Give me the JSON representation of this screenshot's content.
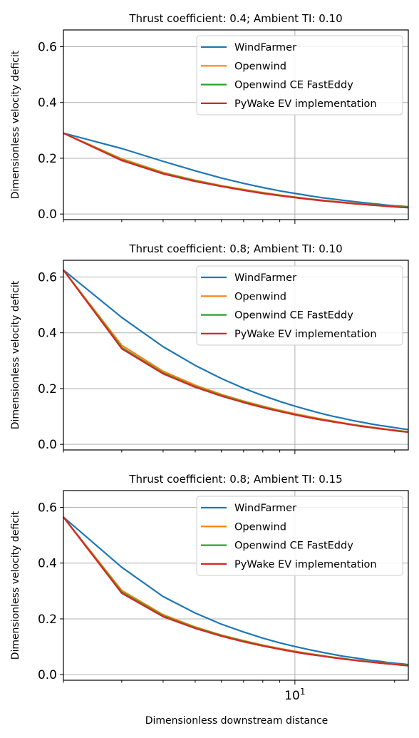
{
  "chart_data": [
    {
      "type": "line",
      "title": "Thrust coefficient: 0.4; Ambient TI: 0.10",
      "ylabel": "Dimensionless velocity deficit",
      "xlabel": "",
      "xscale": "log",
      "xlim": [
        2,
        22
      ],
      "ylim": [
        -0.02,
        0.66
      ],
      "yticks": [
        0.0,
        0.2,
        0.4,
        0.6
      ],
      "ytick_labels": [
        "0.0",
        "0.2",
        "0.4",
        "0.6"
      ],
      "xticks": [
        10
      ],
      "xtick_labels": [
        ""
      ],
      "grid": true,
      "legend_position": "top-right",
      "x": [
        2,
        3,
        4,
        5,
        6,
        7,
        8,
        9,
        10,
        11,
        12,
        13,
        14,
        15,
        16,
        17,
        18,
        19,
        20,
        21,
        22
      ],
      "series": [
        {
          "name": "WindFarmer",
          "color": "#1f77b4",
          "values": [
            0.29,
            0.235,
            0.189,
            0.155,
            0.129,
            0.11,
            0.095,
            0.083,
            0.074,
            0.066,
            0.059,
            0.054,
            0.049,
            0.045,
            0.041,
            0.038,
            0.035,
            0.032,
            0.03,
            0.028,
            0.026
          ]
        },
        {
          "name": "Openwind",
          "color": "#ff7f0e",
          "values": [
            0.29,
            0.198,
            0.149,
            0.121,
            0.102,
            0.088,
            0.077,
            0.068,
            0.061,
            0.055,
            0.05,
            0.046,
            0.042,
            0.039,
            0.036,
            0.033,
            0.031,
            0.029,
            0.027,
            0.025,
            0.024
          ]
        },
        {
          "name": "Openwind CE FastEddy",
          "color": "#2ca02c",
          "values": [
            0.29,
            0.194,
            0.146,
            0.119,
            0.1,
            0.086,
            0.075,
            0.067,
            0.06,
            0.054,
            0.049,
            0.045,
            0.041,
            0.038,
            0.035,
            0.033,
            0.03,
            0.028,
            0.026,
            0.025,
            0.023
          ]
        },
        {
          "name": "PyWake EV implementation",
          "color": "#d62728",
          "values": [
            0.29,
            0.192,
            0.144,
            0.117,
            0.099,
            0.085,
            0.074,
            0.066,
            0.059,
            0.053,
            0.048,
            0.044,
            0.041,
            0.037,
            0.035,
            0.032,
            0.03,
            0.028,
            0.026,
            0.024,
            0.023
          ]
        }
      ]
    },
    {
      "type": "line",
      "title": "Thrust coefficient: 0.8; Ambient TI: 0.10",
      "ylabel": "Dimensionless velocity deficit",
      "xlabel": "",
      "xscale": "log",
      "xlim": [
        2,
        22
      ],
      "ylim": [
        -0.02,
        0.66
      ],
      "yticks": [
        0.0,
        0.2,
        0.4,
        0.6
      ],
      "ytick_labels": [
        "0.0",
        "0.2",
        "0.4",
        "0.6"
      ],
      "xticks": [
        10
      ],
      "xtick_labels": [
        ""
      ],
      "grid": true,
      "legend_position": "top-right",
      "x": [
        2,
        3,
        4,
        5,
        6,
        7,
        8,
        9,
        10,
        11,
        12,
        13,
        14,
        15,
        16,
        17,
        18,
        19,
        20,
        21,
        22
      ],
      "series": [
        {
          "name": "WindFarmer",
          "color": "#1f77b4",
          "values": [
            0.625,
            0.455,
            0.35,
            0.283,
            0.236,
            0.201,
            0.175,
            0.154,
            0.137,
            0.123,
            0.111,
            0.101,
            0.093,
            0.085,
            0.079,
            0.073,
            0.068,
            0.064,
            0.06,
            0.056,
            0.053
          ]
        },
        {
          "name": "Openwind",
          "color": "#ff7f0e",
          "values": [
            0.625,
            0.355,
            0.262,
            0.212,
            0.179,
            0.155,
            0.137,
            0.122,
            0.11,
            0.1,
            0.091,
            0.084,
            0.077,
            0.071,
            0.066,
            0.062,
            0.058,
            0.054,
            0.051,
            0.048,
            0.045
          ]
        },
        {
          "name": "Openwind CE FastEddy",
          "color": "#2ca02c",
          "values": [
            0.625,
            0.347,
            0.256,
            0.207,
            0.175,
            0.152,
            0.134,
            0.119,
            0.107,
            0.097,
            0.089,
            0.082,
            0.075,
            0.07,
            0.065,
            0.06,
            0.056,
            0.053,
            0.05,
            0.047,
            0.044
          ]
        },
        {
          "name": "PyWake EV implementation",
          "color": "#d62728",
          "values": [
            0.625,
            0.343,
            0.253,
            0.205,
            0.173,
            0.15,
            0.132,
            0.118,
            0.106,
            0.096,
            0.088,
            0.081,
            0.075,
            0.069,
            0.064,
            0.06,
            0.056,
            0.053,
            0.049,
            0.046,
            0.044
          ]
        }
      ]
    },
    {
      "type": "line",
      "title": "Thrust coefficient: 0.8; Ambient TI: 0.15",
      "ylabel": "Dimensionless velocity deficit",
      "xlabel": "Dimensionless downstream distance",
      "xscale": "log",
      "xlim": [
        2,
        22
      ],
      "ylim": [
        -0.02,
        0.66
      ],
      "yticks": [
        0.0,
        0.2,
        0.4,
        0.6
      ],
      "ytick_labels": [
        "0.0",
        "0.2",
        "0.4",
        "0.6"
      ],
      "xticks": [
        10
      ],
      "xtick_labels": [
        "10^1"
      ],
      "grid": true,
      "legend_position": "top-right",
      "x": [
        2,
        3,
        4,
        5,
        6,
        7,
        8,
        9,
        10,
        11,
        12,
        13,
        14,
        15,
        16,
        17,
        18,
        19,
        20,
        21,
        22
      ],
      "series": [
        {
          "name": "WindFarmer",
          "color": "#1f77b4",
          "values": [
            0.565,
            0.385,
            0.28,
            0.221,
            0.181,
            0.153,
            0.131,
            0.114,
            0.101,
            0.09,
            0.081,
            0.073,
            0.066,
            0.061,
            0.056,
            0.051,
            0.048,
            0.044,
            0.041,
            0.039,
            0.036
          ]
        },
        {
          "name": "Openwind",
          "color": "#ff7f0e",
          "values": [
            0.565,
            0.302,
            0.215,
            0.171,
            0.142,
            0.122,
            0.106,
            0.094,
            0.084,
            0.076,
            0.069,
            0.063,
            0.058,
            0.053,
            0.049,
            0.046,
            0.043,
            0.04,
            0.038,
            0.035,
            0.033
          ]
        },
        {
          "name": "Openwind CE FastEddy",
          "color": "#2ca02c",
          "values": [
            0.565,
            0.296,
            0.211,
            0.168,
            0.14,
            0.12,
            0.104,
            0.092,
            0.082,
            0.074,
            0.068,
            0.062,
            0.057,
            0.053,
            0.049,
            0.045,
            0.042,
            0.039,
            0.037,
            0.035,
            0.033
          ]
        },
        {
          "name": "PyWake EV implementation",
          "color": "#d62728",
          "values": [
            0.565,
            0.292,
            0.208,
            0.166,
            0.138,
            0.118,
            0.103,
            0.091,
            0.081,
            0.073,
            0.067,
            0.061,
            0.056,
            0.052,
            0.048,
            0.045,
            0.042,
            0.039,
            0.037,
            0.034,
            0.032
          ]
        }
      ]
    }
  ]
}
